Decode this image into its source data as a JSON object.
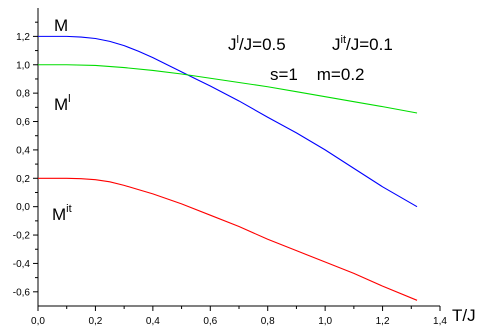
{
  "chart_data": {
    "type": "line",
    "xlabel": "T/J",
    "ylabel": "M",
    "xlim": [
      0.0,
      1.4
    ],
    "ylim": [
      -0.7,
      1.4
    ],
    "x_ticks": [
      "0,0",
      "0,2",
      "0,4",
      "0,6",
      "0,8",
      "1,0",
      "1,2",
      "1,4"
    ],
    "y_ticks": [
      "-0,6",
      "-0,4",
      "-0,2",
      "0,0",
      "0,2",
      "0,4",
      "0,6",
      "0,8",
      "1,0",
      "1,2"
    ],
    "grid": false,
    "annotations": {
      "params_line1": "J¹/J=0.5    Jⁱᵗ/J=0.1",
      "params_line2": "s=1    m=0.2"
    },
    "series": [
      {
        "name": "M",
        "color": "#0000ff",
        "x": [
          0.0,
          0.1,
          0.15,
          0.2,
          0.25,
          0.3,
          0.35,
          0.4,
          0.45,
          0.5,
          0.55,
          0.6,
          0.7,
          0.8,
          0.9,
          1.0,
          1.1,
          1.2,
          1.32
        ],
        "y": [
          1.2,
          1.2,
          1.195,
          1.185,
          1.165,
          1.135,
          1.095,
          1.05,
          1.0,
          0.95,
          0.9,
          0.85,
          0.745,
          0.63,
          0.52,
          0.4,
          0.27,
          0.14,
          0.0
        ]
      },
      {
        "name": "M¹",
        "color": "#00dd00",
        "x": [
          0.0,
          0.1,
          0.2,
          0.3,
          0.4,
          0.5,
          0.6,
          0.7,
          0.8,
          0.9,
          1.0,
          1.1,
          1.2,
          1.32
        ],
        "y": [
          1.0,
          1.0,
          0.995,
          0.98,
          0.96,
          0.935,
          0.905,
          0.875,
          0.845,
          0.81,
          0.775,
          0.74,
          0.705,
          0.66
        ]
      },
      {
        "name": "Mⁱᵗ",
        "color": "#ff0000",
        "x": [
          0.0,
          0.1,
          0.15,
          0.2,
          0.25,
          0.3,
          0.35,
          0.4,
          0.5,
          0.6,
          0.7,
          0.8,
          0.9,
          1.0,
          1.1,
          1.2,
          1.32
        ],
        "y": [
          0.2,
          0.2,
          0.197,
          0.19,
          0.175,
          0.15,
          0.12,
          0.09,
          0.02,
          -0.06,
          -0.14,
          -0.23,
          -0.31,
          -0.39,
          -0.47,
          -0.56,
          -0.66
        ]
      }
    ]
  },
  "labels": {
    "ylabel": "M",
    "xlabel": "T/J",
    "params_line1_a": "J",
    "params_line1_a_sup": "l",
    "params_line1_b": "/J=0.5",
    "params_line1_c": "J",
    "params_line1_c_sup": "it",
    "params_line1_d": "/J=0.1",
    "params_line2": "s=1    m=0.2",
    "curve_ml": "M",
    "curve_ml_sup": "l",
    "curve_mit": "M",
    "curve_mit_sup": "it"
  }
}
